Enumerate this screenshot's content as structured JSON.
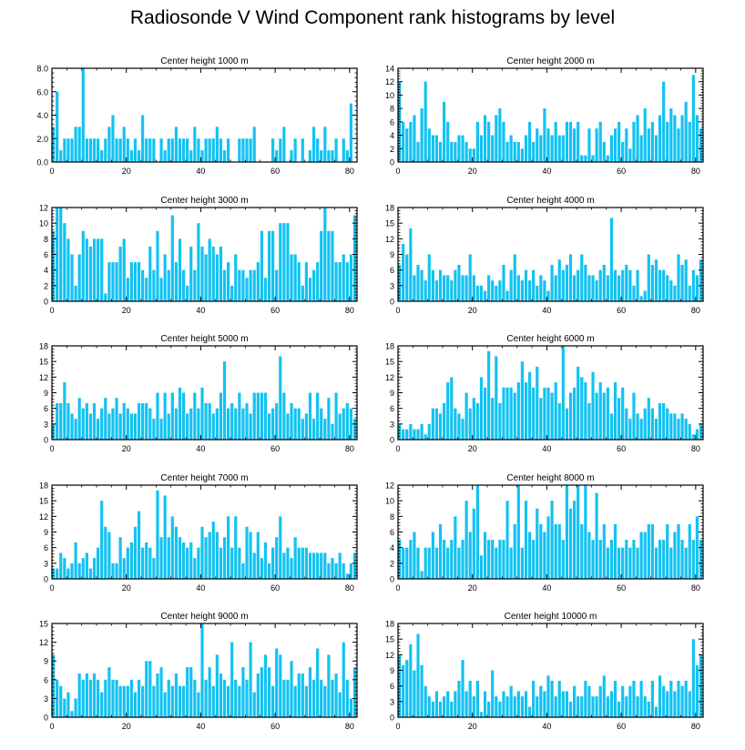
{
  "title": "Radiosonde V Wind Component rank histograms by level",
  "colors": {
    "bar": "#12c2f2",
    "axis": "#000000",
    "background": "#ffffff"
  },
  "chart_data": [
    {
      "type": "bar",
      "title": "Center height 1000 m",
      "xlim": [
        0,
        82
      ],
      "ylim": [
        0,
        8
      ],
      "yticks": [
        "0.0",
        "2.0",
        "4.0",
        "6.0",
        "8.0"
      ],
      "ytick_values": [
        0,
        2,
        4,
        6,
        8
      ],
      "xticks": [
        0,
        20,
        40,
        60,
        80
      ],
      "values": [
        3,
        6,
        1,
        2,
        2,
        2,
        3,
        3,
        8,
        2,
        2,
        2,
        2,
        1,
        2,
        3,
        4,
        2,
        2,
        3,
        2,
        1,
        2,
        1,
        4,
        2,
        2,
        2,
        0,
        2,
        1,
        2,
        2,
        3,
        2,
        2,
        2,
        1,
        3,
        2,
        1,
        2,
        2,
        2,
        3,
        2,
        1,
        2,
        0,
        0,
        2,
        2,
        2,
        2,
        3,
        0,
        0,
        0,
        0,
        2,
        1,
        2,
        3,
        0,
        1,
        2,
        0,
        2,
        0,
        1,
        3,
        2,
        1,
        3,
        1,
        1,
        2,
        0,
        2,
        1,
        5
      ]
    },
    {
      "type": "bar",
      "title": "Center height 2000 m",
      "xlim": [
        0,
        82
      ],
      "ylim": [
        0,
        14
      ],
      "yticks": [
        "0",
        "2",
        "4",
        "6",
        "8",
        "10",
        "12",
        "14"
      ],
      "ytick_values": [
        0,
        2,
        4,
        6,
        8,
        10,
        12,
        14
      ],
      "xticks": [
        0,
        20,
        40,
        60,
        80
      ],
      "values": [
        12,
        6,
        5,
        6,
        7,
        3,
        8,
        12,
        5,
        4,
        4,
        3,
        9,
        6,
        3,
        3,
        4,
        4,
        3,
        2,
        2,
        6,
        4,
        7,
        6,
        4,
        7,
        8,
        6,
        3,
        4,
        3,
        3,
        2,
        4,
        6,
        3,
        5,
        4,
        8,
        5,
        4,
        6,
        4,
        4,
        6,
        6,
        5,
        6,
        1,
        1,
        5,
        1,
        5,
        6,
        3,
        1,
        4,
        5,
        6,
        3,
        5,
        2,
        6,
        7,
        4,
        8,
        5,
        6,
        4,
        7,
        12,
        6,
        8,
        7,
        5,
        7,
        9,
        6,
        13,
        7,
        5
      ]
    },
    {
      "type": "bar",
      "title": "Center height 3000 m",
      "xlim": [
        0,
        82
      ],
      "ylim": [
        0,
        12
      ],
      "yticks": [
        "0",
        "2",
        "4",
        "6",
        "8",
        "10",
        "12"
      ],
      "ytick_values": [
        0,
        2,
        4,
        6,
        8,
        10,
        12
      ],
      "xticks": [
        0,
        20,
        40,
        60,
        80
      ],
      "values": [
        9,
        12,
        12,
        10,
        8,
        6,
        2,
        6,
        9,
        8,
        7,
        8,
        8,
        8,
        1,
        5,
        5,
        5,
        7,
        8,
        3,
        5,
        5,
        5,
        4,
        3,
        7,
        4,
        9,
        3,
        6,
        4,
        11,
        5,
        8,
        4,
        2,
        7,
        4,
        10,
        7,
        6,
        8,
        7,
        6,
        7,
        4,
        5,
        2,
        6,
        4,
        4,
        3,
        4,
        4,
        5,
        9,
        3,
        9,
        9,
        4,
        10,
        10,
        10,
        6,
        6,
        5,
        2,
        5,
        3,
        4,
        5,
        9,
        12,
        9,
        9,
        5,
        5,
        6,
        5,
        6,
        11
      ]
    },
    {
      "type": "bar",
      "title": "Center height 4000 m",
      "xlim": [
        0,
        82
      ],
      "ylim": [
        0,
        18
      ],
      "yticks": [
        "0",
        "3",
        "6",
        "9",
        "12",
        "15",
        "18"
      ],
      "ytick_values": [
        0,
        3,
        6,
        9,
        12,
        15,
        18
      ],
      "xticks": [
        0,
        20,
        40,
        60,
        80
      ],
      "values": [
        7,
        11,
        9,
        14,
        5,
        7,
        6,
        4,
        9,
        6,
        4,
        6,
        5,
        5,
        4,
        6,
        7,
        5,
        5,
        9,
        5,
        3,
        3,
        2,
        5,
        4,
        3,
        4,
        7,
        2,
        6,
        9,
        5,
        4,
        6,
        4,
        6,
        3,
        5,
        4,
        2,
        7,
        5,
        8,
        6,
        7,
        9,
        5,
        6,
        9,
        7,
        5,
        5,
        4,
        6,
        7,
        5,
        16,
        6,
        5,
        6,
        7,
        6,
        3,
        6,
        1,
        2,
        9,
        7,
        8,
        6,
        6,
        5,
        4,
        3,
        9,
        7,
        8,
        3,
        6,
        5,
        8
      ]
    },
    {
      "type": "bar",
      "title": "Center height 5000 m",
      "xlim": [
        0,
        82
      ],
      "ylim": [
        0,
        18
      ],
      "yticks": [
        "0",
        "3",
        "6",
        "9",
        "12",
        "15",
        "18"
      ],
      "ytick_values": [
        0,
        3,
        6,
        9,
        12,
        15,
        18
      ],
      "xticks": [
        0,
        20,
        40,
        60,
        80
      ],
      "values": [
        3,
        7,
        7,
        11,
        7,
        5,
        4,
        8,
        6,
        7,
        5,
        7,
        4,
        6,
        8,
        5,
        6,
        8,
        5,
        7,
        6,
        5,
        5,
        7,
        7,
        7,
        6,
        4,
        9,
        4,
        9,
        5,
        9,
        6,
        10,
        9,
        5,
        6,
        9,
        6,
        10,
        7,
        7,
        5,
        6,
        9,
        15,
        6,
        7,
        6,
        9,
        6,
        7,
        5,
        9,
        9,
        9,
        9,
        5,
        6,
        7,
        16,
        9,
        5,
        7,
        6,
        6,
        4,
        5,
        9,
        4,
        9,
        6,
        4,
        8,
        3,
        9,
        5,
        6,
        7,
        6,
        4
      ]
    },
    {
      "type": "bar",
      "title": "Center height 6000 m",
      "xlim": [
        0,
        82
      ],
      "ylim": [
        0,
        18
      ],
      "yticks": [
        "0",
        "3",
        "6",
        "9",
        "12",
        "15",
        "18"
      ],
      "ytick_values": [
        0,
        3,
        6,
        9,
        12,
        15,
        18
      ],
      "xticks": [
        0,
        20,
        40,
        60,
        80
      ],
      "values": [
        3,
        2,
        2,
        3,
        2,
        2,
        3,
        1,
        3,
        6,
        6,
        5,
        7,
        11,
        12,
        6,
        5,
        4,
        9,
        6,
        8,
        7,
        12,
        10,
        17,
        8,
        16,
        7,
        10,
        10,
        10,
        9,
        11,
        15,
        11,
        13,
        10,
        14,
        8,
        10,
        10,
        9,
        11,
        7,
        18,
        6,
        9,
        10,
        14,
        12,
        11,
        7,
        13,
        9,
        11,
        9,
        10,
        5,
        11,
        8,
        10,
        6,
        4,
        9,
        5,
        4,
        6,
        8,
        6,
        4,
        7,
        7,
        6,
        5,
        5,
        4,
        5,
        4,
        3,
        1,
        2,
        3
      ]
    },
    {
      "type": "bar",
      "title": "Center height 7000 m",
      "xlim": [
        0,
        82
      ],
      "ylim": [
        0,
        18
      ],
      "yticks": [
        "0",
        "3",
        "6",
        "9",
        "12",
        "15",
        "18"
      ],
      "ytick_values": [
        0,
        3,
        6,
        9,
        12,
        15,
        18
      ],
      "xticks": [
        0,
        20,
        40,
        60,
        80
      ],
      "values": [
        2,
        2,
        5,
        4,
        2,
        3,
        7,
        3,
        4,
        5,
        2,
        4,
        6,
        15,
        10,
        9,
        3,
        3,
        8,
        4,
        6,
        7,
        10,
        13,
        6,
        7,
        6,
        4,
        17,
        8,
        16,
        8,
        12,
        10,
        8,
        7,
        6,
        7,
        4,
        6,
        10,
        8,
        9,
        11,
        9,
        6,
        8,
        12,
        6,
        12,
        6,
        3,
        10,
        9,
        5,
        9,
        4,
        7,
        3,
        6,
        8,
        12,
        5,
        6,
        4,
        8,
        6,
        6,
        6,
        5,
        5,
        5,
        5,
        5,
        3,
        4,
        3,
        5,
        3,
        1,
        3,
        5
      ]
    },
    {
      "type": "bar",
      "title": "Center height 8000 m",
      "xlim": [
        0,
        82
      ],
      "ylim": [
        0,
        12
      ],
      "yticks": [
        "0",
        "2",
        "4",
        "6",
        "8",
        "10",
        "12"
      ],
      "ytick_values": [
        0,
        2,
        4,
        6,
        8,
        10,
        12
      ],
      "xticks": [
        0,
        20,
        40,
        60,
        80
      ],
      "values": [
        5,
        4,
        4,
        5,
        6,
        4,
        1,
        4,
        4,
        6,
        4,
        7,
        5,
        4,
        5,
        8,
        4,
        5,
        10,
        6,
        9,
        12,
        3,
        6,
        5,
        5,
        4,
        5,
        5,
        10,
        4,
        7,
        12,
        4,
        10,
        6,
        5,
        9,
        7,
        6,
        8,
        10,
        7,
        7,
        5,
        12,
        9,
        10,
        12,
        7,
        12,
        6,
        5,
        11,
        5,
        7,
        4,
        5,
        7,
        4,
        4,
        5,
        4,
        5,
        4,
        6,
        6,
        7,
        7,
        4,
        5,
        5,
        7,
        4,
        6,
        7,
        5,
        4,
        7,
        5,
        8,
        5
      ]
    },
    {
      "type": "bar",
      "title": "Center height 9000 m",
      "xlim": [
        0,
        82
      ],
      "ylim": [
        0,
        15
      ],
      "yticks": [
        "0",
        "3",
        "6",
        "9",
        "12",
        "15"
      ],
      "ytick_values": [
        0,
        3,
        6,
        9,
        12,
        15
      ],
      "xticks": [
        0,
        20,
        40,
        60,
        80
      ],
      "values": [
        10,
        6,
        5,
        3,
        4,
        1,
        3,
        7,
        6,
        7,
        6,
        7,
        6,
        4,
        6,
        8,
        6,
        6,
        5,
        5,
        5,
        6,
        4,
        6,
        5,
        9,
        9,
        5,
        7,
        8,
        4,
        6,
        5,
        7,
        5,
        5,
        8,
        8,
        6,
        4,
        15,
        6,
        8,
        5,
        10,
        7,
        6,
        5,
        12,
        6,
        5,
        8,
        6,
        12,
        4,
        7,
        8,
        10,
        8,
        5,
        11,
        10,
        6,
        6,
        9,
        5,
        7,
        7,
        5,
        8,
        6,
        11,
        6,
        5,
        10,
        6,
        7,
        4,
        12,
        6,
        3,
        8
      ]
    },
    {
      "type": "bar",
      "title": "Center height 10000 m",
      "xlim": [
        0,
        82
      ],
      "ylim": [
        0,
        18
      ],
      "yticks": [
        "0",
        "3",
        "6",
        "9",
        "12",
        "15",
        "18"
      ],
      "ytick_values": [
        0,
        3,
        6,
        9,
        12,
        15,
        18
      ],
      "xticks": [
        0,
        20,
        40,
        60,
        80
      ],
      "values": [
        12,
        10,
        11,
        14,
        9,
        16,
        10,
        6,
        4,
        3,
        5,
        3,
        4,
        5,
        3,
        5,
        7,
        11,
        5,
        7,
        4,
        7,
        1,
        5,
        3,
        9,
        4,
        3,
        5,
        4,
        6,
        4,
        5,
        4,
        5,
        2,
        7,
        4,
        6,
        5,
        8,
        7,
        4,
        7,
        5,
        5,
        3,
        6,
        4,
        4,
        7,
        6,
        4,
        4,
        6,
        8,
        4,
        5,
        7,
        3,
        6,
        4,
        6,
        7,
        4,
        7,
        4,
        3,
        7,
        2,
        8,
        6,
        5,
        7,
        5,
        7,
        6,
        7,
        5,
        15,
        10,
        12
      ]
    }
  ]
}
